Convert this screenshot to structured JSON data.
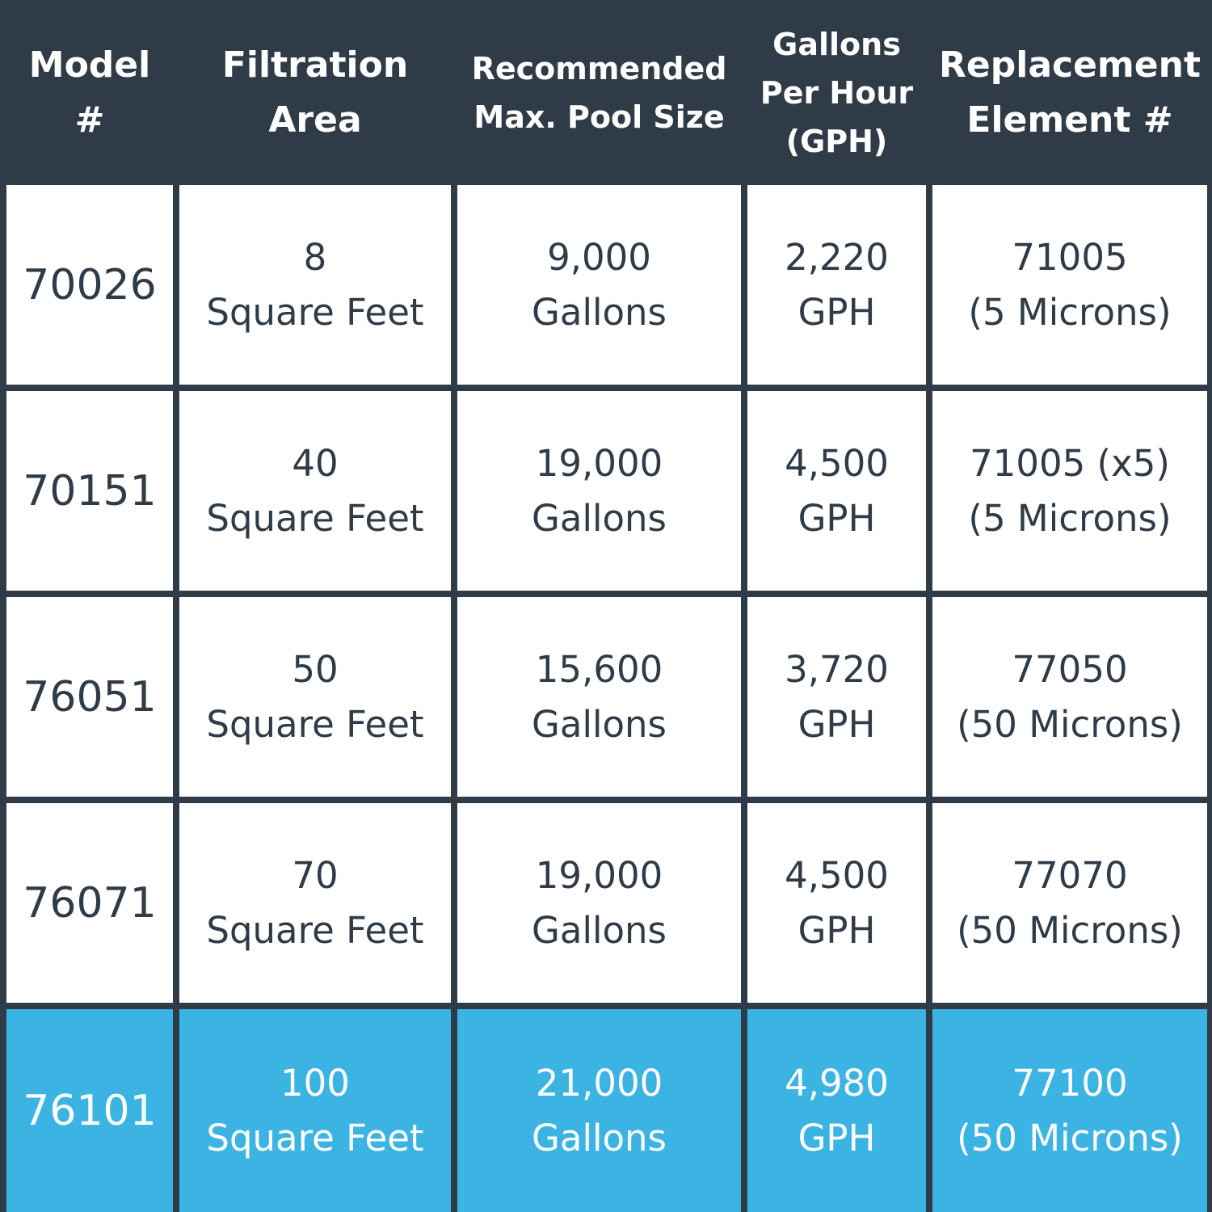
{
  "colors": {
    "header_bg": "#2f3b46",
    "header_text": "#ffffff",
    "body_bg": "#ffffff",
    "body_text": "#2f3b46",
    "highlight_bg": "#3bb3e3",
    "highlight_text": "#ffffff"
  },
  "headers": [
    [
      "Model",
      "#"
    ],
    [
      "Filtration",
      "Area"
    ],
    [
      "Recommended",
      "Max. Pool Size"
    ],
    [
      "Gallons",
      "Per Hour",
      "(GPH)"
    ],
    [
      "Replacement",
      "Element #"
    ]
  ],
  "rows": [
    {
      "model": "70026",
      "area": [
        "8",
        "Square Feet"
      ],
      "pool": [
        "9,000",
        "Gallons"
      ],
      "gph": [
        "2,220",
        "GPH"
      ],
      "element": [
        "71005",
        "(5 Microns)"
      ],
      "highlighted": false
    },
    {
      "model": "70151",
      "area": [
        "40",
        "Square Feet"
      ],
      "pool": [
        "19,000",
        "Gallons"
      ],
      "gph": [
        "4,500",
        "GPH"
      ],
      "element": [
        "71005 (x5)",
        "(5 Microns)"
      ],
      "highlighted": false
    },
    {
      "model": "76051",
      "area": [
        "50",
        "Square Feet"
      ],
      "pool": [
        "15,600",
        "Gallons"
      ],
      "gph": [
        "3,720",
        "GPH"
      ],
      "element": [
        "77050",
        "(50 Microns)"
      ],
      "highlighted": false
    },
    {
      "model": "76071",
      "area": [
        "70",
        "Square Feet"
      ],
      "pool": [
        "19,000",
        "Gallons"
      ],
      "gph": [
        "4,500",
        "GPH"
      ],
      "element": [
        "77070",
        "(50 Microns)"
      ],
      "highlighted": false
    },
    {
      "model": "76101",
      "area": [
        "100",
        "Square Feet"
      ],
      "pool": [
        "21,000",
        "Gallons"
      ],
      "gph": [
        "4,980",
        "GPH"
      ],
      "element": [
        "77100",
        "(50 Microns)"
      ],
      "highlighted": true
    }
  ]
}
